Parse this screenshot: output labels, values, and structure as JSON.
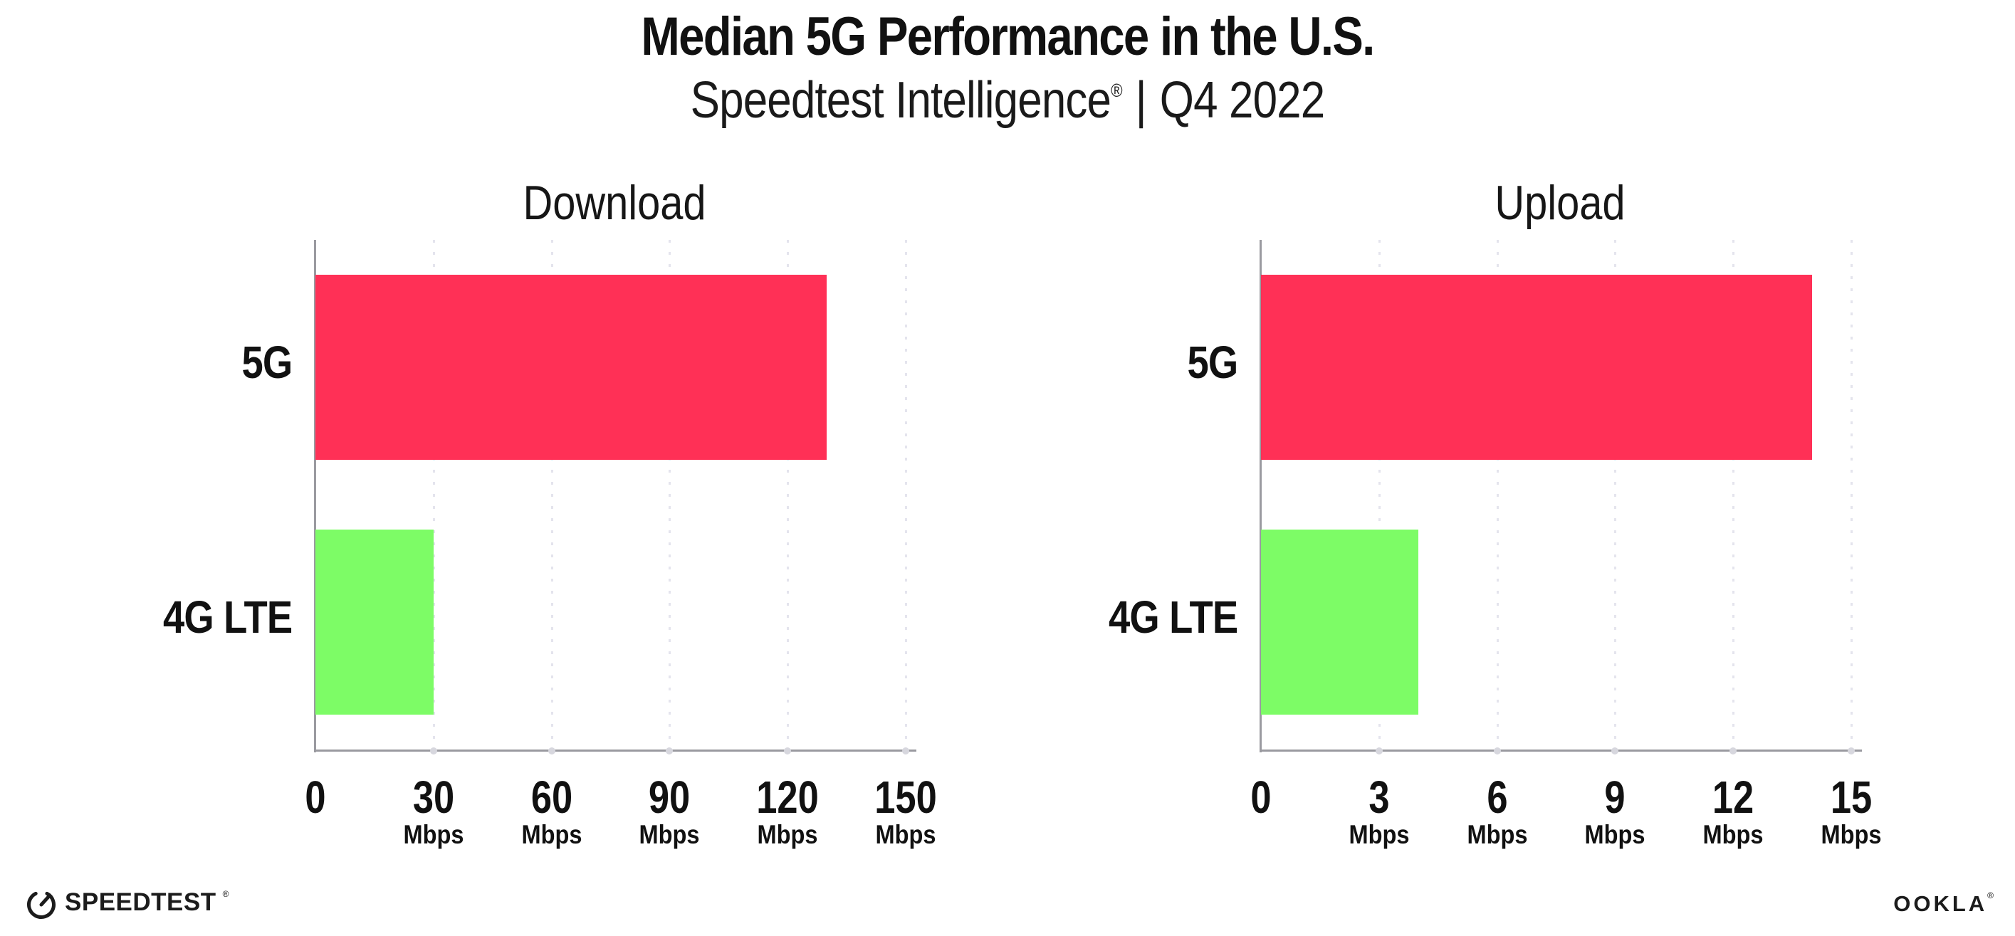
{
  "header": {
    "title": "Median 5G Performance in the U.S.",
    "subtitle": {
      "brand": "Speedtest Intelligence",
      "registered": "®",
      "separator": "|",
      "period": "Q4 2022"
    }
  },
  "colors": {
    "bar_5g": "#FF3056",
    "bar_4g_lte": "#7DFC66",
    "axis": "#9A9AA0",
    "gridline": "#E4E4ED",
    "text": "#111111"
  },
  "chart_data": [
    {
      "type": "bar",
      "orientation": "horizontal",
      "title": "Download",
      "categories": [
        "5G",
        "4G LTE"
      ],
      "values": [
        130,
        30
      ],
      "value_unit": "Mbps",
      "series_colors": [
        "#FF3056",
        "#7DFC66"
      ],
      "ticks": [
        0,
        30,
        60,
        90,
        120,
        150
      ],
      "tick_unit": "Mbps",
      "xlim": [
        0,
        152
      ],
      "grid": "vertical-dotted",
      "legend": "none"
    },
    {
      "type": "bar",
      "orientation": "horizontal",
      "title": "Upload",
      "categories": [
        "5G",
        "4G LTE"
      ],
      "values": [
        14,
        4
      ],
      "value_unit": "Mbps",
      "series_colors": [
        "#FF3056",
        "#7DFC66"
      ],
      "ticks": [
        0,
        3,
        6,
        9,
        12,
        15
      ],
      "tick_unit": "Mbps",
      "xlim": [
        0,
        15.2
      ],
      "grid": "vertical-dotted",
      "legend": "none"
    }
  ],
  "footer": {
    "speedtest": {
      "label": "SPEEDTEST",
      "mark": "®"
    },
    "ookla": {
      "label": "OOKLA",
      "mark": "®"
    }
  }
}
